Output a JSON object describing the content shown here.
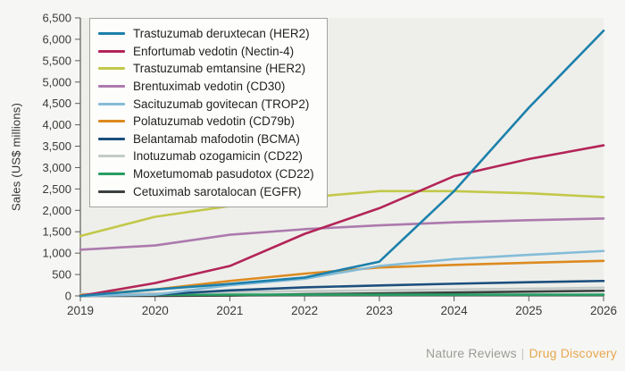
{
  "figure": {
    "y_axis_title": "Sales (US$ millions)",
    "footer": {
      "brand": "Nature Reviews",
      "separator": "|",
      "section": "Drug Discovery"
    },
    "colors": {
      "page_background": "#f6f6f4",
      "plot_background": "#eeefeb",
      "axis": "#5c5c58",
      "tick_label": "#3b3b38",
      "legend_border": "#a3a39e",
      "legend_background": "#fdfdfb",
      "footer_brand": "#9b9b97",
      "footer_separator": "#c6c6c1",
      "footer_section": "#e7a74e"
    }
  },
  "chart_data": {
    "type": "line",
    "title": "",
    "xlabel": "",
    "ylabel": "Sales (US$ millions)",
    "x": [
      2019,
      2020,
      2021,
      2022,
      2023,
      2024,
      2025,
      2026
    ],
    "ylim": [
      0,
      6500
    ],
    "ytick_step": 500,
    "grid": false,
    "legend_position": "top-left",
    "series": [
      {
        "name": "Trastuzumab deruxtecan (HER2)",
        "target": "HER2",
        "color": "#1c80ab",
        "values": [
          0,
          150,
          280,
          430,
          800,
          2450,
          4400,
          6200
        ]
      },
      {
        "name": "Enfortumab vedotin (Nectin-4)",
        "target": "Nectin-4",
        "color": "#b32558",
        "values": [
          0,
          300,
          700,
          1450,
          2050,
          2800,
          3200,
          3520
        ]
      },
      {
        "name": "Trastuzumab emtansine (HER2)",
        "target": "HER2",
        "color": "#c3c84a",
        "values": [
          1400,
          1850,
          2100,
          2300,
          2450,
          2450,
          2400,
          2310
        ]
      },
      {
        "name": "Brentuximab vedotin (CD30)",
        "target": "CD30",
        "color": "#ac7aad",
        "values": [
          1080,
          1180,
          1430,
          1560,
          1650,
          1720,
          1770,
          1810
        ]
      },
      {
        "name": "Sacituzumab govitecan (TROP2)",
        "target": "TROP2",
        "color": "#85bcd8",
        "values": [
          0,
          30,
          250,
          400,
          700,
          860,
          960,
          1050
        ]
      },
      {
        "name": "Polatuzumab vedotin (CD79b)",
        "target": "CD79b",
        "color": "#dd8a1f",
        "values": [
          20,
          150,
          350,
          520,
          665,
          725,
          775,
          820
        ]
      },
      {
        "name": "Belantamab mafodotin (BCMA)",
        "target": "BCMA",
        "color": "#1c4f7e",
        "values": [
          0,
          30,
          130,
          200,
          245,
          285,
          320,
          350
        ]
      },
      {
        "name": "Inotuzumab ozogamicin (CD22)",
        "target": "CD22",
        "color": "#c2cbc8",
        "values": [
          45,
          60,
          90,
          110,
          130,
          150,
          170,
          190
        ]
      },
      {
        "name": "Moxetumomab pasudotox (CD22)",
        "target": "CD22",
        "color": "#279e63",
        "values": [
          20,
          28,
          30,
          30,
          30,
          30,
          30,
          30
        ]
      },
      {
        "name": "Cetuximab sarotalocan (EGFR)",
        "target": "EGFR",
        "color": "#3b4040",
        "values": [
          0,
          0,
          10,
          40,
          60,
          80,
          100,
          120
        ]
      }
    ]
  }
}
